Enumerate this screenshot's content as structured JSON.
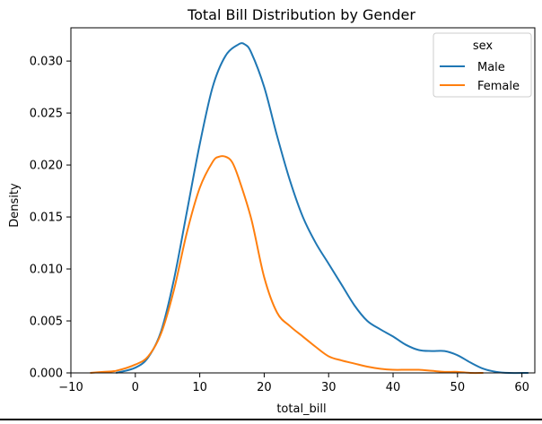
{
  "chart_data": {
    "type": "line",
    "title": "Total Bill Distribution by Gender",
    "xlabel": "total_bill",
    "ylabel": "Density",
    "xlim": [
      -10,
      62
    ],
    "ylim": [
      0,
      0.0332
    ],
    "xticks": [
      -10,
      0,
      10,
      20,
      30,
      40,
      50,
      60
    ],
    "xtick_labels": [
      "−10",
      "0",
      "10",
      "20",
      "30",
      "40",
      "50",
      "60"
    ],
    "yticks": [
      0,
      0.005,
      0.01,
      0.015,
      0.02,
      0.025,
      0.03
    ],
    "ytick_labels": [
      "0.000",
      "0.005",
      "0.010",
      "0.015",
      "0.020",
      "0.025",
      "0.030"
    ],
    "grid": false,
    "legend": {
      "title": "sex",
      "placement": "top-right"
    },
    "series": [
      {
        "name": "Male",
        "color": "#1f77b4",
        "x": [
          -3,
          0,
          2,
          4,
          6,
          8,
          10,
          12,
          14,
          16,
          17,
          18,
          20,
          22,
          24,
          26,
          28,
          30,
          32,
          34,
          36,
          38,
          40,
          42,
          44,
          46,
          48,
          50,
          52,
          54,
          56,
          58,
          61
        ],
        "y": [
          0.0,
          0.0005,
          0.0015,
          0.004,
          0.009,
          0.0155,
          0.022,
          0.0275,
          0.0305,
          0.0316,
          0.0316,
          0.0308,
          0.0275,
          0.0228,
          0.0185,
          0.015,
          0.0125,
          0.0105,
          0.0085,
          0.0065,
          0.005,
          0.0042,
          0.0035,
          0.0027,
          0.0022,
          0.0021,
          0.0021,
          0.0017,
          0.001,
          0.0004,
          0.0001,
          0.0,
          0.0
        ]
      },
      {
        "name": "Female",
        "color": "#ff7f0e",
        "x": [
          -7,
          -5,
          -3,
          0,
          2,
          4,
          6,
          8,
          10,
          12,
          13,
          14,
          15,
          16,
          18,
          20,
          22,
          24,
          26,
          28,
          30,
          32,
          34,
          36,
          38,
          40,
          42,
          44,
          46,
          48,
          50,
          52,
          54
        ],
        "y": [
          0.0,
          0.0001,
          0.0002,
          0.0008,
          0.0016,
          0.0038,
          0.008,
          0.0135,
          0.0178,
          0.0203,
          0.0208,
          0.0208,
          0.0203,
          0.0188,
          0.0148,
          0.0092,
          0.0058,
          0.0045,
          0.0035,
          0.0025,
          0.0016,
          0.0012,
          0.0009,
          0.0006,
          0.0004,
          0.0003,
          0.0003,
          0.0003,
          0.0002,
          0.0001,
          0.0001,
          0.0,
          0.0
        ]
      }
    ]
  }
}
